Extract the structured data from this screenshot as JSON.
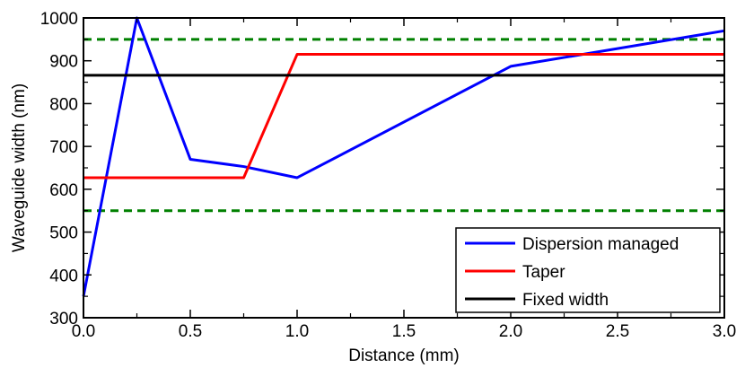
{
  "chart_data": {
    "type": "line",
    "xlabel": "Distance (mm)",
    "ylabel": "Waveguide width (nm)",
    "xlim": [
      0.0,
      3.0
    ],
    "ylim": [
      300,
      1000
    ],
    "x_ticks": [
      "0.0",
      "0.5",
      "1.0",
      "1.5",
      "2.0",
      "2.5",
      "3.0"
    ],
    "y_ticks": [
      "300",
      "400",
      "500",
      "600",
      "700",
      "800",
      "900",
      "1000"
    ],
    "grid": false,
    "legend_position": "bottom-right",
    "series": [
      {
        "name": "Dispersion managed",
        "color": "#0000ff",
        "style": "solid",
        "x": [
          0.0,
          0.25,
          0.5,
          0.75,
          1.0,
          2.0,
          3.0
        ],
        "y": [
          350,
          1000,
          670,
          653,
          627,
          887,
          970
        ]
      },
      {
        "name": "Taper",
        "color": "#ff0000",
        "style": "solid",
        "x": [
          0.0,
          0.75,
          1.0,
          3.0
        ],
        "y": [
          627,
          627,
          915,
          915
        ]
      },
      {
        "name": "Fixed width",
        "color": "#000000",
        "style": "solid",
        "x": [
          0.0,
          3.0
        ],
        "y": [
          866,
          866
        ]
      }
    ],
    "reference_lines": [
      {
        "y": 950,
        "color": "#008000",
        "style": "dashed"
      },
      {
        "y": 550,
        "color": "#008000",
        "style": "dashed"
      }
    ]
  }
}
